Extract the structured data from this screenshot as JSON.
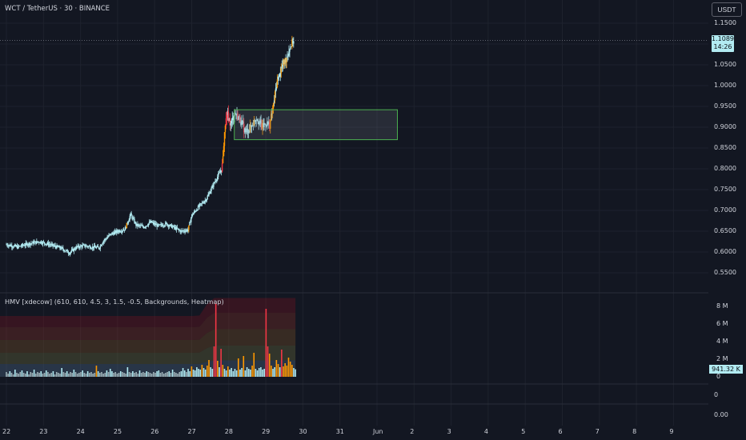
{
  "header": {
    "symbol": "WCT / TetherUS · 30 · BINANCE",
    "currency_button": "USDT"
  },
  "price_axis": {
    "labels": [
      "1.1500",
      "1.0500",
      "1.0000",
      "0.9500",
      "0.9000",
      "0.8500",
      "0.8000",
      "0.7500",
      "0.7000",
      "0.6500",
      "0.6000",
      "0.5500"
    ],
    "last_price": "1.1089",
    "countdown": "14:26",
    "last_price_color": "#b2ebf2"
  },
  "volume_axis": {
    "labels": [
      "8 M",
      "6 M",
      "4 M",
      "2 M",
      "0"
    ],
    "last_volume": "941.32 K"
  },
  "extra_panes": {
    "pane1_label": "0",
    "pane2_label": "0.00"
  },
  "indicator": {
    "label": "HMV [xdecow] (610, 610, 4.5, 3, 1.5, -0.5, Backgrounds, Heatmap)"
  },
  "time_axis": {
    "labels": [
      "22",
      "23",
      "24",
      "25",
      "26",
      "27",
      "28",
      "29",
      "30",
      "31",
      "Jun",
      "2",
      "3",
      "4",
      "5",
      "6",
      "7",
      "8",
      "9"
    ]
  },
  "chart_data": {
    "type": "line",
    "title": "WCT / TetherUS · 30 · BINANCE",
    "xlabel": "",
    "ylabel": "",
    "ylim": [
      0.52,
      1.17
    ],
    "x_start_day": 22,
    "series": [
      {
        "name": "price",
        "points": [
          [
            22.0,
            0.618
          ],
          [
            22.3,
            0.612
          ],
          [
            22.6,
            0.62
          ],
          [
            22.9,
            0.625
          ],
          [
            23.2,
            0.617
          ],
          [
            23.5,
            0.608
          ],
          [
            23.7,
            0.598
          ],
          [
            23.9,
            0.612
          ],
          [
            24.1,
            0.615
          ],
          [
            24.3,
            0.612
          ],
          [
            24.5,
            0.61
          ],
          [
            24.6,
            0.625
          ],
          [
            24.8,
            0.642
          ],
          [
            25.0,
            0.65
          ],
          [
            25.2,
            0.655
          ],
          [
            25.35,
            0.69
          ],
          [
            25.5,
            0.665
          ],
          [
            25.7,
            0.66
          ],
          [
            25.9,
            0.672
          ],
          [
            26.1,
            0.662
          ],
          [
            26.3,
            0.668
          ],
          [
            26.5,
            0.66
          ],
          [
            26.7,
            0.65
          ],
          [
            26.9,
            0.653
          ],
          [
            27.0,
            0.688
          ],
          [
            27.2,
            0.71
          ],
          [
            27.4,
            0.728
          ],
          [
            27.6,
            0.765
          ],
          [
            27.75,
            0.79
          ],
          [
            27.82,
            0.805
          ],
          [
            27.88,
            0.88
          ],
          [
            27.95,
            0.935
          ],
          [
            28.05,
            0.905
          ],
          [
            28.15,
            0.935
          ],
          [
            28.3,
            0.92
          ],
          [
            28.45,
            0.888
          ],
          [
            28.6,
            0.9
          ],
          [
            28.75,
            0.925
          ],
          [
            28.9,
            0.9
          ],
          [
            29.0,
            0.91
          ],
          [
            29.1,
            0.905
          ],
          [
            29.2,
            0.95
          ],
          [
            29.3,
            1.01
          ],
          [
            29.45,
            1.048
          ],
          [
            29.55,
            1.065
          ],
          [
            29.65,
            1.092
          ],
          [
            29.75,
            1.11
          ]
        ]
      },
      {
        "name": "volume",
        "unit": "M",
        "ylim": [
          0,
          9.0
        ],
        "values": [
          0.6,
          0.4,
          0.7,
          0.5,
          0.3,
          0.9,
          0.5,
          0.4,
          0.6,
          0.8,
          0.5,
          0.4,
          0.7,
          0.3,
          0.6,
          0.5,
          0.9,
          0.4,
          0.6,
          0.5,
          0.7,
          0.4,
          0.5,
          0.8,
          0.6,
          0.4,
          0.5,
          0.7,
          0.3,
          0.6,
          0.5,
          0.4,
          1.1,
          0.6,
          0.5,
          0.7,
          0.4,
          0.6,
          0.5,
          0.9,
          0.6,
          0.4,
          0.5,
          0.6,
          0.8,
          0.5,
          0.4,
          0.7,
          0.5,
          0.6,
          0.4,
          0.5,
          1.4,
          0.7,
          0.5,
          0.6,
          0.4,
          0.5,
          0.8,
          0.6,
          1.0,
          0.7,
          0.5,
          0.6,
          0.4,
          0.5,
          0.7,
          0.6,
          0.5,
          0.4,
          1.2,
          0.6,
          0.5,
          0.7,
          0.5,
          0.6,
          0.4,
          0.8,
          0.5,
          0.6,
          0.5,
          0.7,
          0.6,
          0.5,
          0.4,
          0.6,
          0.5,
          0.7,
          0.8,
          0.5,
          0.6,
          0.4,
          0.5,
          0.6,
          0.7,
          0.5,
          0.9,
          0.6,
          0.5,
          0.4,
          0.6,
          0.7,
          1.1,
          0.8,
          0.6,
          1.0,
          0.7,
          1.3,
          0.9,
          0.8,
          1.2,
          1.0,
          0.9,
          1.5,
          1.1,
          0.9,
          1.4,
          2.1,
          1.2,
          1.0,
          3.8,
          9.2,
          2.0,
          1.2,
          3.5,
          1.5,
          1.0,
          0.8,
          1.3,
          0.9,
          1.1,
          0.7,
          1.0,
          0.8,
          2.3,
          0.9,
          1.1,
          2.6,
          0.8,
          1.2,
          1.0,
          0.9,
          1.4,
          3.0,
          1.0,
          0.8,
          1.1,
          1.2,
          0.9,
          1.0,
          8.5,
          3.8,
          2.9,
          1.4,
          1.0,
          1.2,
          2.1,
          1.6,
          1.2,
          3.4,
          1.3,
          1.7,
          1.4,
          2.4,
          1.9,
          1.5,
          1.1,
          0.94
        ]
      }
    ],
    "zone": {
      "x_range": [
        28.15,
        32.55
      ],
      "y_range": [
        0.87,
        0.942
      ],
      "border_color": "#4caf50"
    },
    "colors": {
      "up": "#b2ebf2",
      "down": "#b2ebf2",
      "hot": "#ff9800",
      "extreme": "#f23645",
      "grid": "#1e222d"
    }
  }
}
